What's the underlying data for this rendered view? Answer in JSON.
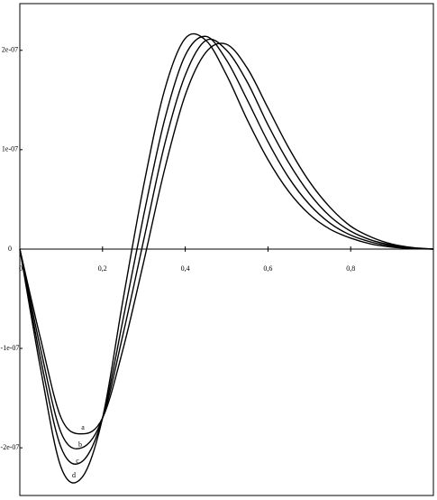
{
  "chart_data": {
    "type": "line",
    "x": [
      0,
      0.05,
      0.1,
      0.15,
      0.2,
      0.25,
      0.3,
      0.35,
      0.4,
      0.45,
      0.5,
      0.55,
      0.6,
      0.65,
      0.7,
      0.75,
      0.8,
      0.85,
      0.9,
      0.95,
      1
    ],
    "series": [
      {
        "name": "a",
        "color": "#000000",
        "values": [
          0,
          -9e-08,
          -1.7e-07,
          -1.86e-07,
          -1.7e-07,
          -1e-07,
          -1.2e-08,
          8e-08,
          1.55e-07,
          1.98e-07,
          2.06e-07,
          1.82e-07,
          1.42e-07,
          1.02e-07,
          6.8e-08,
          4.2e-08,
          2.3e-08,
          1.2e-08,
          5e-09,
          1.5e-09,
          0
        ]
      },
      {
        "name": "b",
        "color": "#000000",
        "values": [
          0,
          -1e-07,
          -1.85e-07,
          -2e-07,
          -1.7e-07,
          -8.5e-08,
          1e-08,
          1.05e-07,
          1.75e-07,
          2.1e-07,
          2e-07,
          1.68e-07,
          1.25e-07,
          8.7e-08,
          5.6e-08,
          3.3e-08,
          1.8e-08,
          9e-09,
          4e-09,
          1e-09,
          0
        ]
      },
      {
        "name": "c",
        "color": "#000000",
        "values": [
          0,
          -1.1e-07,
          -2e-07,
          -2.14e-07,
          -1.7e-07,
          -7e-08,
          3.5e-08,
          1.3e-07,
          1.95e-07,
          2.14e-07,
          1.9e-07,
          1.5e-07,
          1.08e-07,
          7.2e-08,
          4.5e-08,
          2.6e-08,
          1.4e-08,
          7e-09,
          3e-09,
          8e-10,
          0
        ]
      },
      {
        "name": "d",
        "color": "#000000",
        "values": [
          0,
          -1.2e-07,
          -2.2e-07,
          -2.3e-07,
          -1.7e-07,
          -5e-08,
          6.5e-08,
          1.6e-07,
          2.12e-07,
          2.1e-07,
          1.75e-07,
          1.3e-07,
          9e-08,
          5.8e-08,
          3.5e-08,
          2e-08,
          1.1e-08,
          5e-09,
          2e-09,
          5e-10,
          0
        ]
      }
    ],
    "xlim": [
      0,
      1
    ],
    "ylim": [
      -2.48e-07,
      2.47e-07
    ],
    "xticks": [
      0,
      {
        "value": 0.2,
        "label": "0,2"
      },
      {
        "value": 0.4,
        "label": "0,4"
      },
      {
        "value": 0.6,
        "label": "0,6"
      },
      {
        "value": 0.8,
        "label": "0,8"
      }
    ],
    "yticks": [
      {
        "value": -2e-07,
        "label": "-2e-07"
      },
      {
        "value": -1e-07,
        "label": "-1e-07"
      },
      0,
      {
        "value": 1e-07,
        "label": "1e-07"
      },
      {
        "value": 2e-07,
        "label": "2e-07"
      }
    ]
  }
}
